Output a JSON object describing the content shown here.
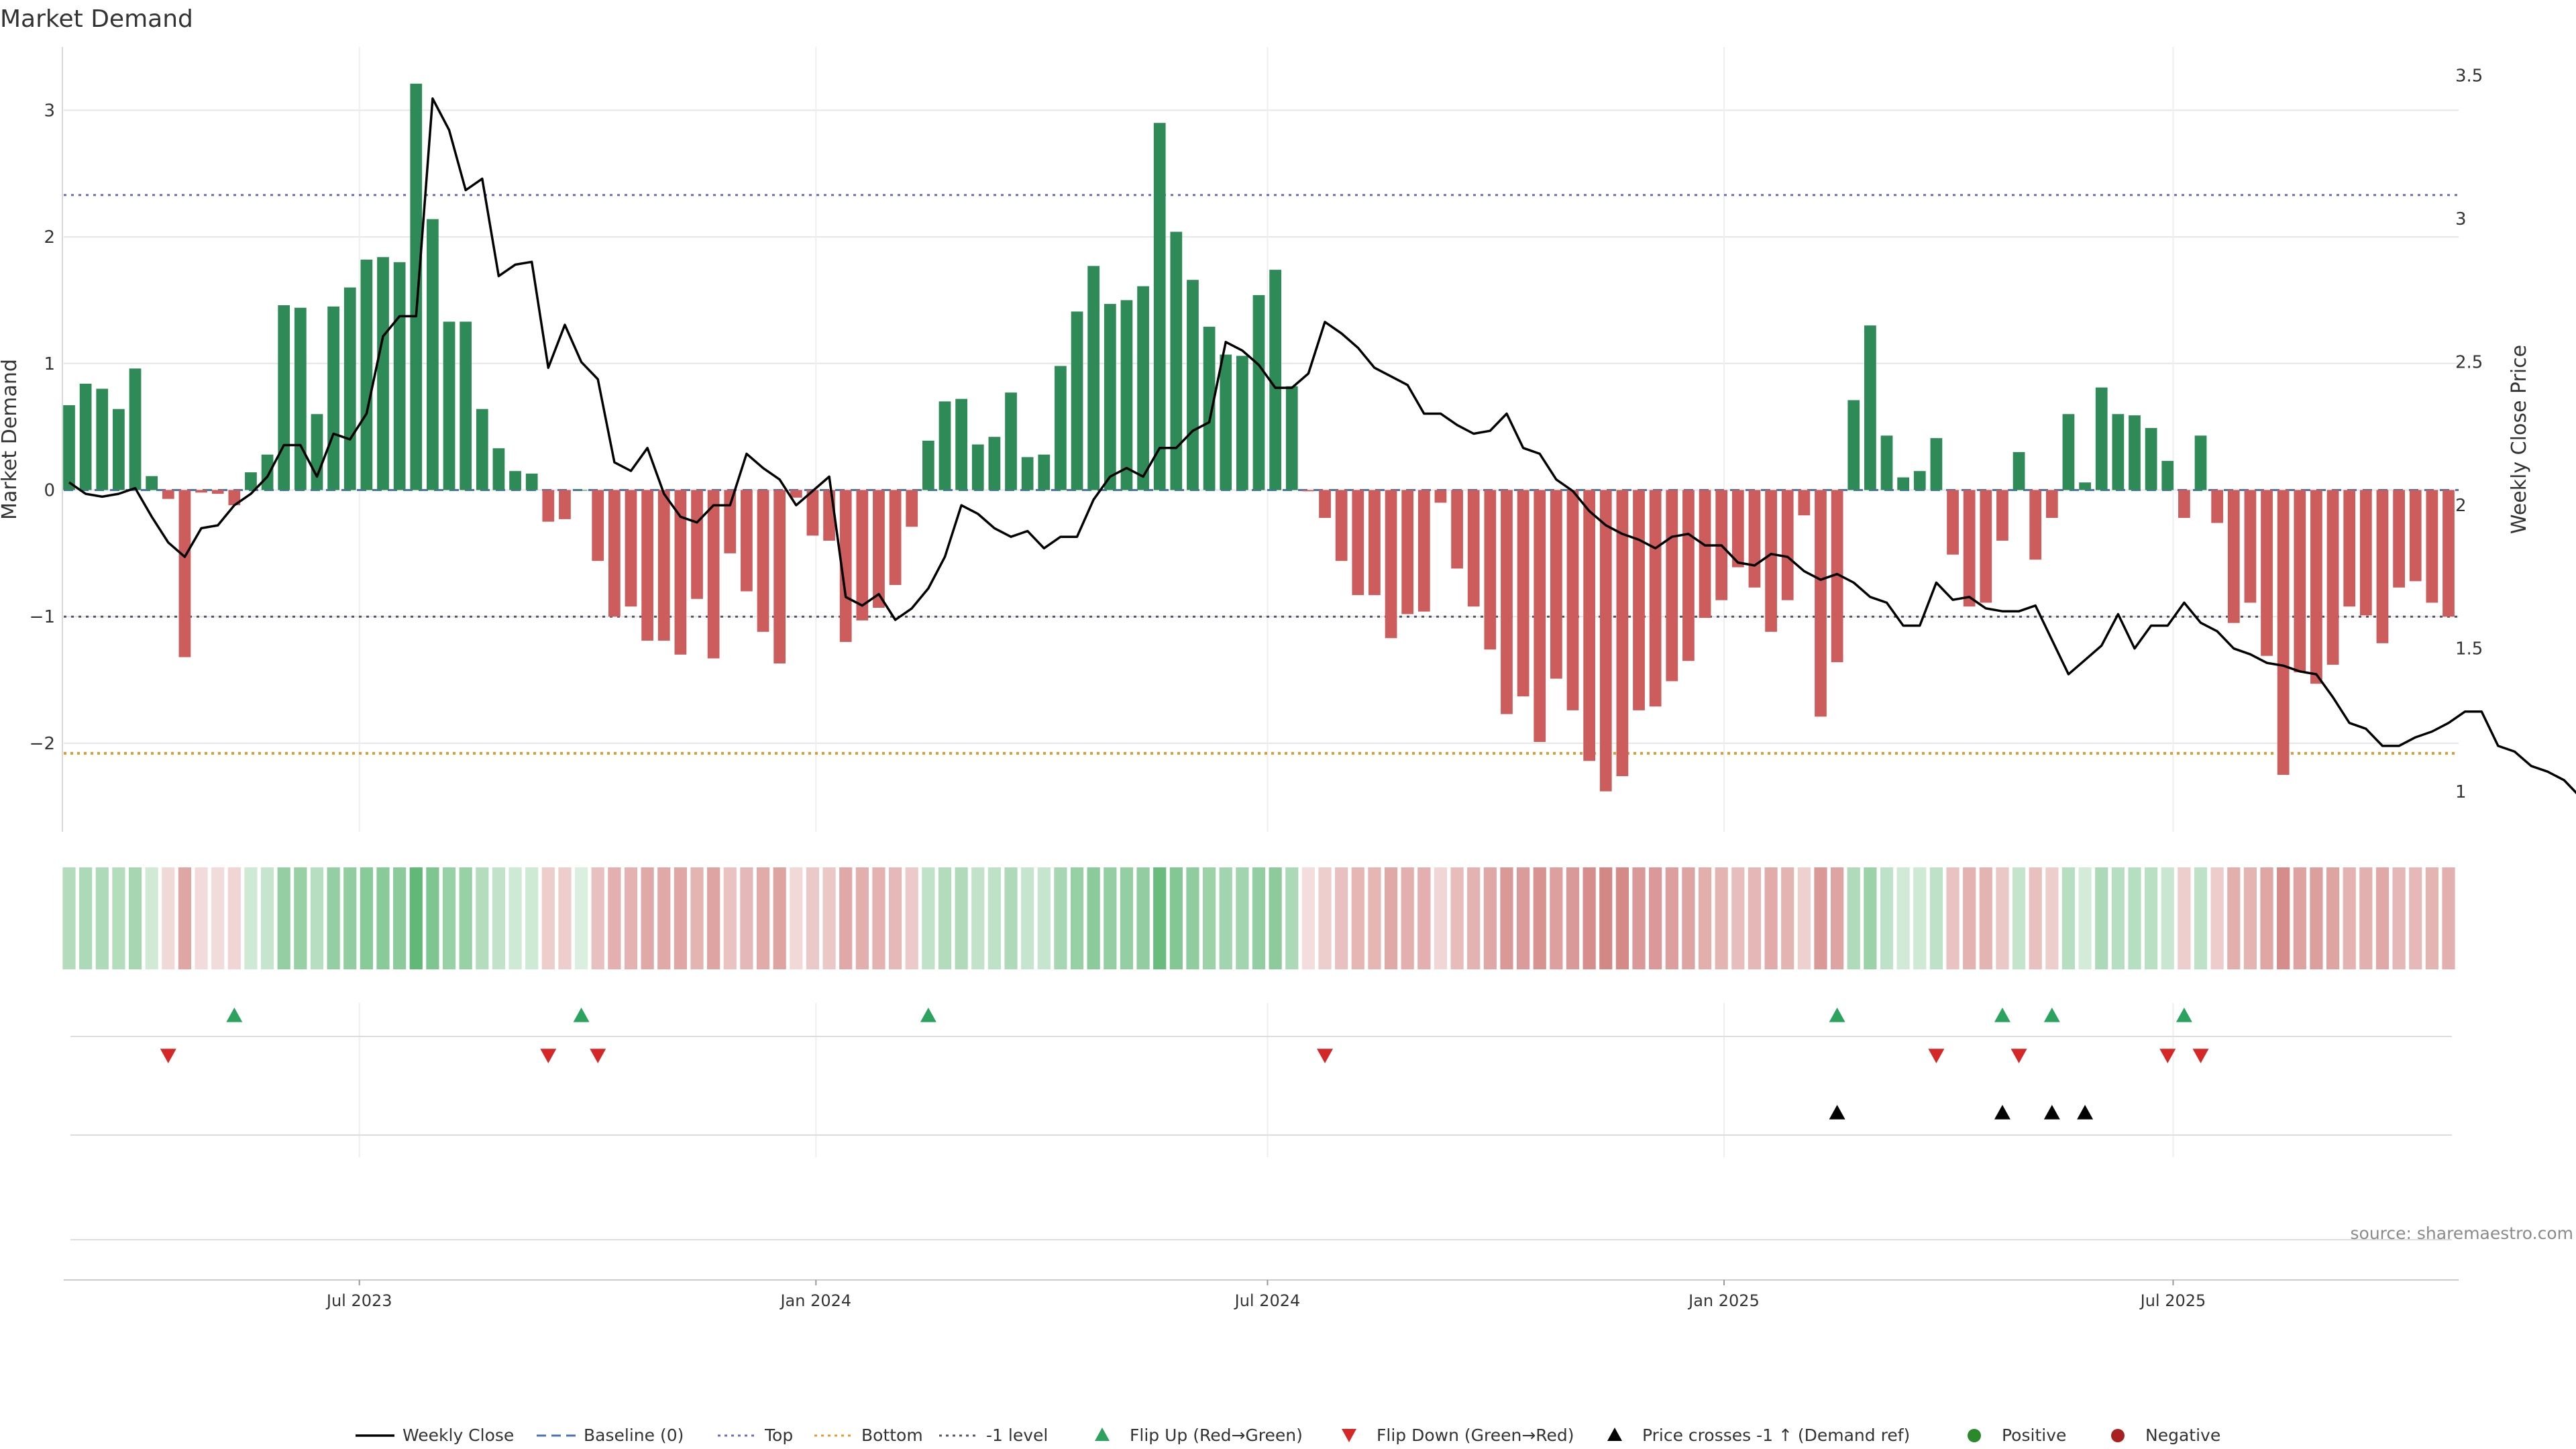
{
  "chart_data": {
    "type": "bar",
    "title": "Market Demand",
    "ylabel_left": "Market Demand",
    "ylabel_right": "Weekly Close Price",
    "ylim_left": [
      -2.7,
      3.5
    ],
    "ylim_right": [
      0.86,
      3.6
    ],
    "yticks_left": [
      "3",
      "2",
      "1",
      "0",
      "−1",
      "−2"
    ],
    "yticks_left_values": [
      3,
      2,
      1,
      0,
      -1,
      -2
    ],
    "yticks_right": [
      "3.5",
      "3",
      "2.5",
      "2",
      "1.5",
      "1"
    ],
    "yticks_right_values": [
      3.5,
      3.0,
      2.5,
      2.0,
      1.5,
      1.0
    ],
    "x_start": "2023-03-06",
    "x_end": "2025-10-20",
    "x_ticks": [
      {
        "label": "Jul 2023",
        "date": "2023-07-01"
      },
      {
        "label": "Jan 2024",
        "date": "2024-01-01"
      },
      {
        "label": "Jul 2024",
        "date": "2024-07-01"
      },
      {
        "label": "Jan 2025",
        "date": "2025-01-01"
      },
      {
        "label": "Jul 2025",
        "date": "2025-07-01"
      }
    ],
    "reference_lines": {
      "top": 2.33,
      "bottom": -2.08,
      "minus_one": -1,
      "baseline": 0
    },
    "demand": [
      0.67,
      0.84,
      0.8,
      0.64,
      0.96,
      0.11,
      -0.07,
      -1.32,
      -0.02,
      -0.03,
      -0.12,
      0.14,
      0.28,
      1.46,
      1.44,
      0.6,
      1.45,
      1.6,
      1.82,
      1.84,
      1.8,
      3.21,
      2.14,
      1.33,
      1.33,
      0.64,
      0.33,
      0.15,
      0.13,
      -0.25,
      -0.23,
      0.0,
      -0.56,
      -1.0,
      -0.92,
      -1.19,
      -1.19,
      -1.3,
      -0.86,
      -1.33,
      -0.5,
      -0.8,
      -1.12,
      -1.37,
      -0.06,
      -0.36,
      -0.4,
      -1.2,
      -1.03,
      -0.93,
      -0.75,
      -0.29,
      0.39,
      0.7,
      0.72,
      0.36,
      0.42,
      0.77,
      0.26,
      0.28,
      0.98,
      1.41,
      1.77,
      1.47,
      1.5,
      1.61,
      2.9,
      2.04,
      1.66,
      1.29,
      1.07,
      1.06,
      1.54,
      1.74,
      0.82,
      -0.01,
      -0.22,
      -0.56,
      -0.83,
      -0.83,
      -1.17,
      -0.98,
      -0.96,
      -0.1,
      -0.62,
      -0.92,
      -1.26,
      -1.77,
      -1.63,
      -1.99,
      -1.49,
      -1.74,
      -2.14,
      -2.38,
      -2.26,
      -1.74,
      -1.71,
      -1.51,
      -1.35,
      -1.01,
      -0.87,
      -0.61,
      -0.77,
      -1.12,
      -0.87,
      -0.2,
      -1.79,
      -1.36,
      0.71,
      1.3,
      0.43,
      0.1,
      0.15,
      0.41,
      -0.51,
      -0.92,
      -0.89,
      -0.4,
      0.3,
      -0.55,
      -0.22,
      0.6,
      0.06,
      0.81,
      0.6,
      0.59,
      0.49,
      0.23,
      -0.22,
      0.43,
      -0.26,
      -1.05,
      -0.89,
      -1.31,
      -2.25,
      -1.44,
      -1.53,
      -1.38,
      -0.92,
      -0.99,
      -1.21,
      -0.77,
      -0.72,
      -0.89,
      -1.0
    ],
    "price": [
      2.08,
      2.04,
      2.03,
      2.04,
      2.06,
      1.96,
      1.87,
      1.82,
      1.92,
      1.93,
      2.0,
      2.04,
      2.1,
      2.21,
      2.21,
      2.1,
      2.25,
      2.23,
      2.32,
      2.59,
      2.66,
      2.66,
      3.42,
      3.31,
      3.1,
      3.14,
      2.8,
      2.84,
      2.85,
      2.48,
      2.63,
      2.5,
      2.44,
      2.15,
      2.12,
      2.2,
      2.04,
      1.96,
      1.94,
      2.0,
      2.0,
      2.18,
      2.13,
      2.09,
      2.0,
      2.05,
      2.1,
      1.68,
      1.65,
      1.69,
      1.6,
      1.64,
      1.71,
      1.82,
      2.0,
      1.97,
      1.92,
      1.89,
      1.91,
      1.85,
      1.89,
      1.89,
      2.02,
      2.1,
      2.13,
      2.1,
      2.2,
      2.2,
      2.26,
      2.29,
      2.57,
      2.54,
      2.49,
      2.41,
      2.41,
      2.46,
      2.64,
      2.6,
      2.55,
      2.48,
      2.45,
      2.42,
      2.32,
      2.32,
      2.28,
      2.25,
      2.26,
      2.32,
      2.2,
      2.18,
      2.09,
      2.05,
      1.98,
      1.93,
      1.9,
      1.88,
      1.85,
      1.89,
      1.9,
      1.86,
      1.86,
      1.8,
      1.79,
      1.83,
      1.82,
      1.77,
      1.74,
      1.76,
      1.73,
      1.68,
      1.66,
      1.58,
      1.58,
      1.73,
      1.67,
      1.68,
      1.64,
      1.63,
      1.63,
      1.65,
      1.53,
      1.41,
      1.46,
      1.51,
      1.62,
      1.5,
      1.58,
      1.58,
      1.66,
      1.59,
      1.56,
      1.5,
      1.48,
      1.45,
      1.44,
      1.42,
      1.41,
      1.33,
      1.24,
      1.22,
      1.16,
      1.16,
      1.19,
      1.21,
      1.24,
      1.28,
      1.28,
      1.16,
      1.14,
      1.09,
      1.07,
      1.04,
      0.98
    ],
    "flip_up_weeks": [
      10,
      31,
      52,
      107,
      117,
      120,
      128
    ],
    "flip_down_weeks": [
      6,
      29,
      32,
      76,
      113,
      118,
      127,
      129
    ],
    "price_cross_weeks": [
      107,
      117,
      120,
      122
    ],
    "annotation": "source: sharemaestro.com",
    "legend": [
      {
        "label": "Weekly Close",
        "kind": "line",
        "color": "#000000"
      },
      {
        "label": "Baseline (0)",
        "kind": "dashed",
        "color": "#4a72b0"
      },
      {
        "label": "Top",
        "kind": "dotted",
        "color": "#6b6bc0"
      },
      {
        "label": "Bottom",
        "kind": "dotted",
        "color": "#e69a2e"
      },
      {
        "label": "-1 level",
        "kind": "dotted",
        "color": "#555566"
      },
      {
        "label": "Flip Up (Red→Green)",
        "kind": "triangle-up",
        "color": "#2ca25f"
      },
      {
        "label": "Flip Down (Green→Red)",
        "kind": "triangle-down",
        "color": "#d62728"
      },
      {
        "label": "Price crosses -1 ↑ (Demand ref)",
        "kind": "triangle-up",
        "color": "#000000"
      },
      {
        "label": "Positive",
        "kind": "circle",
        "color": "#2a8a2a"
      },
      {
        "label": "Negative",
        "kind": "circle",
        "color": "#a82020"
      }
    ],
    "colors": {
      "positive_bar": "#2e8b57",
      "negative_bar": "#cd5c5c",
      "price_line": "#000000",
      "heat_positive": "#3aa655",
      "heat_negative": "#c0504d",
      "flip_up": "#2ca25f",
      "flip_down": "#d62728",
      "cross_marker": "#000000",
      "grid": "#e6e6e6"
    }
  }
}
